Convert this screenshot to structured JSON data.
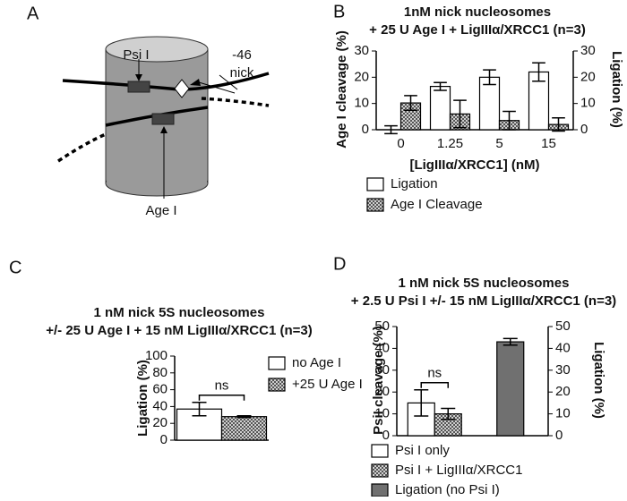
{
  "panels": [
    "A",
    "B",
    "C",
    "D"
  ],
  "diagram": {
    "labels": [
      "Psi I",
      "-46",
      "nick",
      "Age I"
    ]
  },
  "chart_data": [
    {
      "type": "bar",
      "title": [
        "1nM nick nucleosomes",
        "+ 25 U Age I + LigIIIα/XRCC1 (n=3)"
      ],
      "xlabel": "[LigIIIα/XRCC1] (nM)",
      "ylabel": "Age I cleavage (%)",
      "y2label": "Ligation (%)",
      "categories": [
        "0",
        "1.25",
        "5",
        "15"
      ],
      "ylim": [
        0,
        30
      ],
      "yticks": [
        0,
        10,
        20,
        30
      ],
      "y2lim": [
        0,
        30
      ],
      "y2ticks": [
        0,
        10,
        20,
        30
      ],
      "series": [
        {
          "name": "Ligation",
          "color": "#ffffff",
          "axis": "y2",
          "values": [
            0,
            16.5,
            20,
            22
          ],
          "errors": [
            1.5,
            1.5,
            2.8,
            3.5
          ]
        },
        {
          "name": "Age I Cleavage",
          "color": "#555555",
          "hatch": true,
          "values": [
            10.2,
            6,
            3.5,
            2
          ],
          "errors": [
            2.8,
            5.2,
            3.5,
            2.5
          ]
        }
      ]
    },
    {
      "type": "bar",
      "title": [
        "1 nM nick 5S nucleosomes",
        "+/- 25 U Age I + 15 nM LigIIIα/XRCC1 (n=3)"
      ],
      "ylabel": "Ligation (%)",
      "categories": [
        null
      ],
      "ylim": [
        0,
        100
      ],
      "yticks": [
        0,
        20,
        40,
        60,
        80,
        100
      ],
      "annotation": "ns",
      "series": [
        {
          "name": "no Age I",
          "color": "#ffffff",
          "values": [
            37
          ],
          "errors": [
            8
          ]
        },
        {
          "name": "+25 U Age I",
          "color": "#555555",
          "hatch": true,
          "values": [
            28
          ],
          "errors": [
            1
          ]
        }
      ]
    },
    {
      "type": "bar",
      "title": [
        "1 nM nick 5S nucleosomes",
        "+ 2.5 U Psi I +/- 15 nM LigIIIα/XRCC1 (n=3)"
      ],
      "ylabel": "PsiI cleavage (%)",
      "y2label": "Ligation (%)",
      "categories": [
        null,
        null
      ],
      "ylim": [
        0,
        50
      ],
      "yticks": [
        0,
        10,
        20,
        30,
        40,
        50
      ],
      "y2lim": [
        0,
        50
      ],
      "y2ticks": [
        0,
        10,
        20,
        30,
        40,
        50
      ],
      "annotation": "ns",
      "series": [
        {
          "name": "Psi I only",
          "color": "#ffffff",
          "values": [
            15,
            null
          ],
          "errors": [
            6,
            null
          ]
        },
        {
          "name": "Psi I + LigIIIα/XRCC1",
          "color": "#555555",
          "hatch": true,
          "values": [
            10,
            null
          ],
          "errors": [
            2.5,
            null
          ]
        },
        {
          "name": "Ligation (no Psi I)",
          "color": "#707070",
          "axis": "y2",
          "values": [
            null,
            43
          ],
          "errors": [
            null,
            1.5
          ]
        }
      ]
    }
  ]
}
